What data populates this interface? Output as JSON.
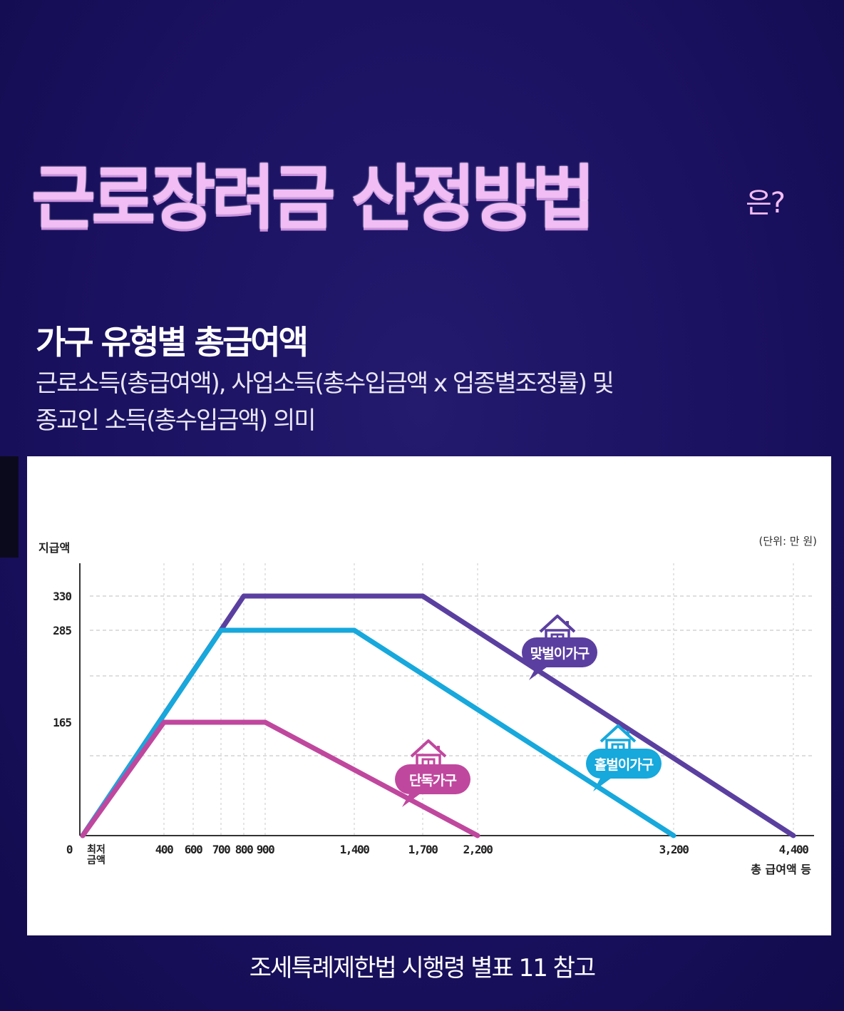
{
  "title": "근로장려금 산정방법",
  "title_suffix": "은?",
  "subtitle": "가구 유형별 총급여액",
  "description_lines": [
    "근로소득(총급여액), 사업소득(총수입금액 x 업종별조정률) 및",
    "종교인 소득(총수입금액) 의미"
  ],
  "footer": "조세특례제한법 시행령 별표 11 참고",
  "chart_data": {
    "type": "line",
    "ylabel": "지급액",
    "unit_label": "(단위: 만 원)",
    "xlabel": "총 급여액 등",
    "x_ticks": [
      {
        "value": 0,
        "label": "0"
      },
      {
        "value": 80,
        "label": "최저 금액"
      },
      {
        "value": 400,
        "label": "400"
      },
      {
        "value": 600,
        "label": "600"
      },
      {
        "value": 700,
        "label": "700"
      },
      {
        "value": 800,
        "label": "800"
      },
      {
        "value": 900,
        "label": "900"
      },
      {
        "value": 1400,
        "label": "1,400"
      },
      {
        "value": 1700,
        "label": "1,700"
      },
      {
        "value": 2200,
        "label": "2,200"
      },
      {
        "value": 3200,
        "label": "3,200"
      },
      {
        "value": 4400,
        "label": "4,400"
      }
    ],
    "y_ticks": [
      165,
      285,
      330
    ],
    "series": [
      {
        "name": "맞벌이가구",
        "color": "#5b3fa0",
        "points": [
          [
            0,
            0
          ],
          [
            800,
            330
          ],
          [
            1700,
            330
          ],
          [
            4400,
            0
          ]
        ]
      },
      {
        "name": "홑벌이가구",
        "color": "#17a8dc",
        "points": [
          [
            0,
            0
          ],
          [
            700,
            285
          ],
          [
            1400,
            285
          ],
          [
            3200,
            0
          ]
        ]
      },
      {
        "name": "단독가구",
        "color": "#c0479e",
        "points": [
          [
            0,
            0
          ],
          [
            400,
            165
          ],
          [
            900,
            165
          ],
          [
            2200,
            0
          ]
        ]
      }
    ],
    "grid": true,
    "legend": "callout labels near each line"
  }
}
